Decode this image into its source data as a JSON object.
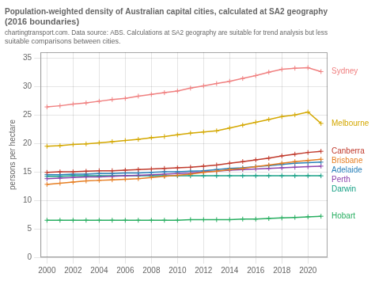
{
  "chart_data": {
    "type": "line",
    "title": "Population-weighted density of Australian capital cities, calculated at SA2 geography (2016 boundaries)",
    "subtitle": "chartingtransport.com. Data source: ABS. Calculations at SA2 geography are suitable for trend analysis but less suitable comparisons between cities.",
    "ylabel": "persons per hectare",
    "x": [
      2000,
      2001,
      2002,
      2003,
      2004,
      2005,
      2006,
      2007,
      2008,
      2009,
      2010,
      2011,
      2012,
      2013,
      2014,
      2015,
      2016,
      2017,
      2018,
      2019,
      2020,
      2021
    ],
    "xlim": [
      1999.5,
      2021.5
    ],
    "xticks": [
      2000,
      2002,
      2004,
      2006,
      2008,
      2010,
      2012,
      2014,
      2016,
      2018,
      2020
    ],
    "ylim": [
      0,
      36
    ],
    "yticks": [
      0,
      5,
      10,
      15,
      20,
      25,
      30,
      35
    ],
    "grid": true,
    "marker": "plus",
    "series": [
      {
        "name": "Sydney",
        "color": "#f08080",
        "values": [
          26.4,
          26.6,
          26.9,
          27.1,
          27.4,
          27.7,
          27.9,
          28.3,
          28.6,
          28.9,
          29.2,
          29.7,
          30.1,
          30.5,
          30.9,
          31.4,
          31.9,
          32.5,
          33.0,
          33.2,
          33.3,
          32.6
        ]
      },
      {
        "name": "Melbourne",
        "color": "#d4a800",
        "values": [
          19.5,
          19.6,
          19.8,
          19.9,
          20.1,
          20.3,
          20.5,
          20.7,
          21.0,
          21.2,
          21.5,
          21.8,
          22.0,
          22.2,
          22.7,
          23.2,
          23.7,
          24.2,
          24.7,
          25.0,
          25.5,
          23.5
        ]
      },
      {
        "name": "Canberra",
        "color": "#c0392b",
        "values": [
          14.9,
          15.0,
          15.0,
          15.1,
          15.2,
          15.2,
          15.3,
          15.4,
          15.5,
          15.6,
          15.7,
          15.8,
          16.0,
          16.2,
          16.5,
          16.8,
          17.1,
          17.4,
          17.8,
          18.1,
          18.4,
          18.6
        ]
      },
      {
        "name": "Brisbane",
        "color": "#e67e22",
        "values": [
          12.8,
          13.0,
          13.2,
          13.4,
          13.5,
          13.6,
          13.7,
          13.8,
          14.0,
          14.2,
          14.4,
          14.6,
          14.9,
          15.1,
          15.4,
          15.6,
          15.9,
          16.2,
          16.5,
          16.8,
          17.0,
          17.2
        ]
      },
      {
        "name": "Adelaide",
        "color": "#2980b9",
        "values": [
          14.5,
          14.5,
          14.6,
          14.6,
          14.7,
          14.7,
          14.8,
          14.8,
          14.9,
          15.0,
          15.0,
          15.1,
          15.2,
          15.4,
          15.6,
          15.7,
          15.9,
          16.1,
          16.3,
          16.5,
          16.6,
          16.7
        ]
      },
      {
        "name": "Perth",
        "color": "#8e44ad",
        "values": [
          13.8,
          13.9,
          14.0,
          14.1,
          14.1,
          14.2,
          14.3,
          14.4,
          14.5,
          14.6,
          14.7,
          14.8,
          15.0,
          15.1,
          15.3,
          15.4,
          15.5,
          15.6,
          15.7,
          15.8,
          15.9,
          16.0
        ]
      },
      {
        "name": "Darwin",
        "color": "#16a085",
        "values": [
          14.2,
          14.2,
          14.3,
          14.3,
          14.3,
          14.3,
          14.3,
          14.3,
          14.3,
          14.3,
          14.3,
          14.3,
          14.3,
          14.3,
          14.3,
          14.3,
          14.3,
          14.3,
          14.3,
          14.3,
          14.3,
          14.3
        ]
      },
      {
        "name": "Hobart",
        "color": "#27ae60",
        "values": [
          6.5,
          6.5,
          6.5,
          6.5,
          6.5,
          6.5,
          6.5,
          6.5,
          6.5,
          6.5,
          6.5,
          6.6,
          6.6,
          6.6,
          6.6,
          6.7,
          6.7,
          6.8,
          6.9,
          7.0,
          7.1,
          7.2
        ]
      }
    ]
  }
}
